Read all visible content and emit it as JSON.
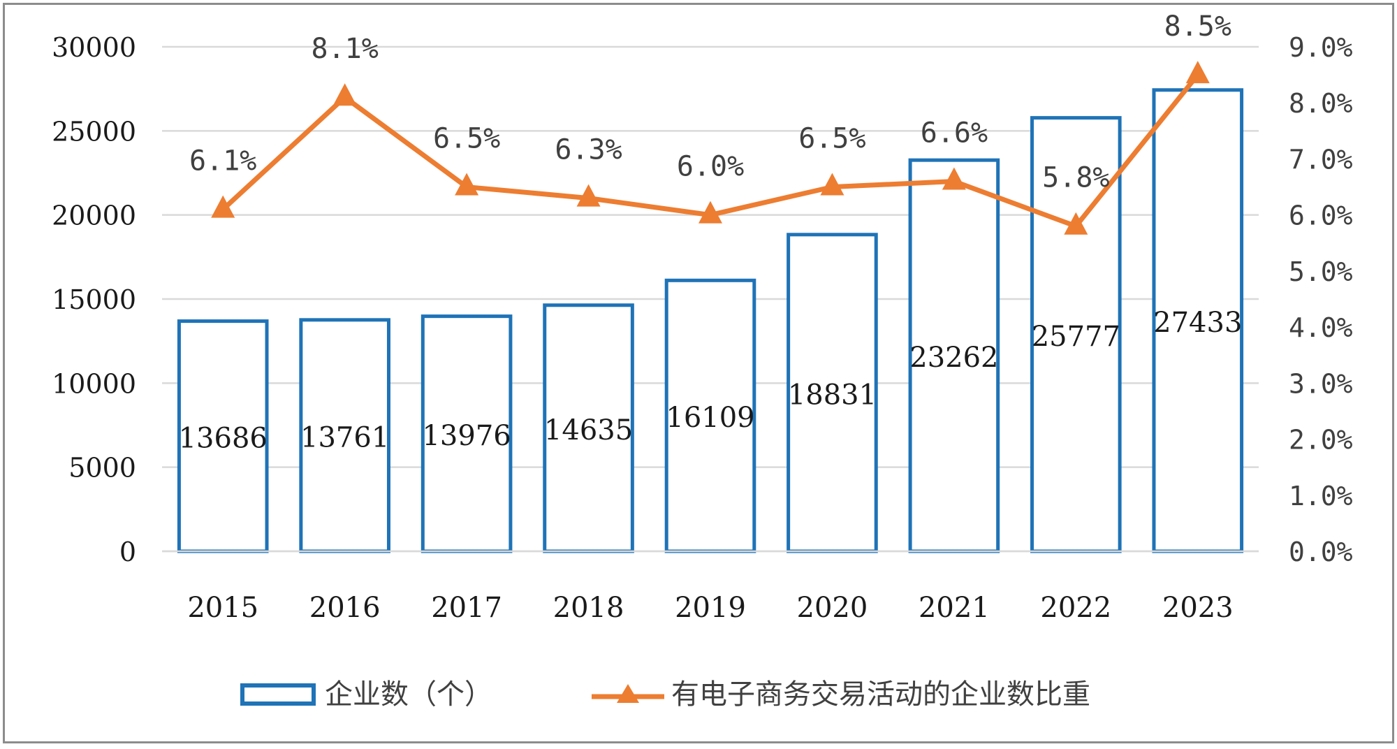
{
  "chart_data": {
    "type": "bar-line-combo",
    "categories": [
      "2015",
      "2016",
      "2017",
      "2018",
      "2019",
      "2020",
      "2021",
      "2022",
      "2023"
    ],
    "series": [
      {
        "name": "企业数（个）",
        "type": "bar",
        "axis": "left",
        "values": [
          13686,
          13761,
          13976,
          14635,
          16109,
          18831,
          23262,
          25777,
          27433
        ],
        "labels": [
          "13686",
          "13761",
          "13976",
          "14635",
          "16109",
          "18831",
          "23262",
          "25777",
          "27433"
        ],
        "color": "#1f73b7"
      },
      {
        "name": "有电子商务交易活动的企业数比重",
        "type": "line",
        "axis": "right",
        "marker": "triangle",
        "values": [
          6.1,
          8.1,
          6.5,
          6.3,
          6.0,
          6.5,
          6.6,
          5.8,
          8.5
        ],
        "labels": [
          "6.1%",
          "8.1%",
          "6.5%",
          "6.3%",
          "6.0%",
          "6.5%",
          "6.6%",
          "5.8%",
          "8.5%"
        ],
        "color": "#ed7d31"
      }
    ],
    "y_left": {
      "range": [
        0,
        30000
      ],
      "ticks": [
        "0",
        "5000",
        "10000",
        "15000",
        "20000",
        "25000",
        "30000"
      ],
      "tick_values": [
        0,
        5000,
        10000,
        15000,
        20000,
        25000,
        30000
      ]
    },
    "y_right": {
      "range": [
        0,
        9
      ],
      "ticks": [
        "0.0%",
        "1.0%",
        "2.0%",
        "3.0%",
        "4.0%",
        "5.0%",
        "6.0%",
        "7.0%",
        "8.0%",
        "9.0%"
      ],
      "tick_values": [
        0,
        1,
        2,
        3,
        4,
        5,
        6,
        7,
        8,
        9
      ]
    },
    "grid": true,
    "legend_position": "bottom",
    "gridline_color": "#d9d9d9"
  }
}
